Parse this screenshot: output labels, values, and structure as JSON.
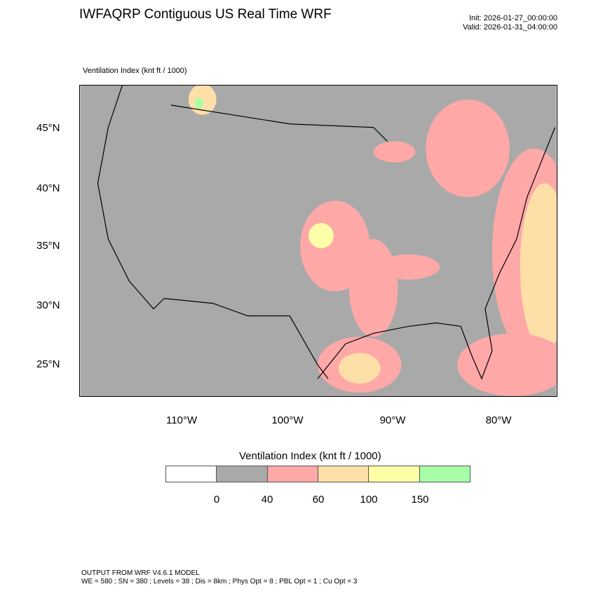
{
  "header": {
    "title": "IWFAQRP Contiguous US Real Time WRF",
    "init": "Init: 2026-01-27_00:00:00",
    "valid": "Valid: 2026-01-31_04:00:00"
  },
  "map": {
    "subtitle": "Ventilation Index   (knt ft / 1000)",
    "lat_labels": [
      "45°N",
      "40°N",
      "35°N",
      "30°N",
      "25°N"
    ],
    "lon_labels": [
      "110°W",
      "100°W",
      "90°W",
      "80°W"
    ]
  },
  "colorbar": {
    "title": "Ventilation Index  (knt ft / 1000)",
    "colors": [
      "#ffffff",
      "#a9a9a9",
      "#ffa8a8",
      "#ffdfa8",
      "#ffffa8",
      "#a8ffa8"
    ],
    "labels": [
      "0",
      "40",
      "60",
      "100",
      "150"
    ]
  },
  "footer": {
    "line1": "OUTPUT FROM WRF V4.6.1 MODEL",
    "line2": "WE = 580 ; SN = 380 ; Levels = 38 ; Dis = 8km ; Phys Opt = 8 ; PBL Opt = 1 ; Cu Opt = 3"
  }
}
